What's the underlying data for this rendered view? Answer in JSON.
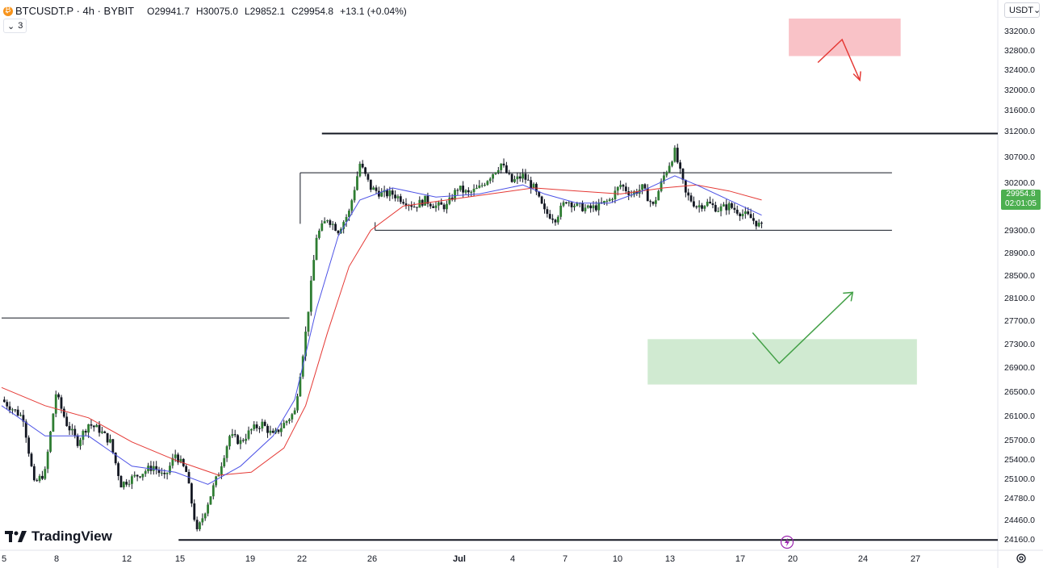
{
  "legend": {
    "symbol": "BTCUSDT.P · 4h · BYBIT",
    "open_label": "O",
    "open": "29941.7",
    "high_label": "H",
    "high": "30075.0",
    "low_label": "L",
    "low": "29852.1",
    "close_label": "C",
    "close": "29954.8",
    "change": "+13.1 (+0.04%)",
    "indicator_count": "3",
    "coin_icon": "bitcoin-icon"
  },
  "currency_select": {
    "value": "USDT",
    "icon": "chevron-down-icon"
  },
  "price_tag": {
    "price": "29954.8",
    "countdown": "02:01:05",
    "color": "#4caf50"
  },
  "branding": {
    "logo_text": "TradingView"
  },
  "colors": {
    "up": "#26a69a",
    "candle_body": "#2e7d32",
    "ema_fast": "#4c52e6",
    "ema_slow": "#e53935",
    "sell_zone": "#f8b7bd",
    "buy_zone": "#c8e6c9",
    "sell_arrow": "#e53935",
    "buy_arrow": "#43a047"
  },
  "chart_data": {
    "type": "candlestick",
    "y_ticks": [
      "33200.0",
      "32800.0",
      "32400.0",
      "32000.0",
      "31600.0",
      "31200.0",
      "30700.0",
      "30200.0",
      "29700.0",
      "29300.0",
      "28900.0",
      "28500.0",
      "28100.0",
      "27700.0",
      "27300.0",
      "26900.0",
      "26500.0",
      "26100.0",
      "25700.0",
      "25400.0",
      "25100.0",
      "24780.0",
      "24460.0",
      "24160.0"
    ],
    "x_ticks": [
      "5",
      "8",
      "12",
      "15",
      "19",
      "22",
      "26",
      "Jul",
      "4",
      "7",
      "10",
      "13",
      "17",
      "20",
      "24",
      "27"
    ],
    "x_tick_bold": "Jul",
    "ylim": [
      24000,
      33500
    ],
    "price_path": [
      [
        0,
        27100
      ],
      [
        2,
        26800
      ],
      [
        3,
        25700
      ],
      [
        4,
        25900
      ],
      [
        5,
        27200
      ],
      [
        6,
        26700
      ],
      [
        7,
        26400
      ],
      [
        8,
        26700
      ],
      [
        9,
        26600
      ],
      [
        10,
        26400
      ],
      [
        11,
        25700
      ],
      [
        12,
        25800
      ],
      [
        13,
        25900
      ],
      [
        14,
        26000
      ],
      [
        15,
        25800
      ],
      [
        16,
        26200
      ],
      [
        17,
        25900
      ],
      [
        18,
        24900
      ],
      [
        19,
        25400
      ],
      [
        20,
        25900
      ],
      [
        21,
        26500
      ],
      [
        22,
        26400
      ],
      [
        23,
        26600
      ],
      [
        24,
        26700
      ],
      [
        25,
        26500
      ],
      [
        26,
        26700
      ],
      [
        27,
        26900
      ],
      [
        28,
        28200
      ],
      [
        29,
        29800
      ],
      [
        30,
        30100
      ],
      [
        31,
        29900
      ],
      [
        32,
        30200
      ],
      [
        33,
        31000
      ],
      [
        34,
        30600
      ],
      [
        35,
        30500
      ],
      [
        36,
        30500
      ],
      [
        37,
        30400
      ],
      [
        38,
        30300
      ],
      [
        39,
        30400
      ],
      [
        40,
        30300
      ],
      [
        41,
        30300
      ],
      [
        42,
        30600
      ],
      [
        43,
        30500
      ],
      [
        44,
        30600
      ],
      [
        45,
        30800
      ],
      [
        46,
        31000
      ],
      [
        47,
        30700
      ],
      [
        48,
        30800
      ],
      [
        49,
        30600
      ],
      [
        50,
        30200
      ],
      [
        51,
        30100
      ],
      [
        52,
        30400
      ],
      [
        53,
        30300
      ],
      [
        54,
        30250
      ],
      [
        55,
        30300
      ],
      [
        56,
        30400
      ],
      [
        57,
        30650
      ],
      [
        58,
        30500
      ],
      [
        59,
        30600
      ],
      [
        60,
        30300
      ],
      [
        61,
        30800
      ],
      [
        62,
        31200
      ],
      [
        63,
        30500
      ],
      [
        64,
        30300
      ],
      [
        65,
        30350
      ],
      [
        66,
        30250
      ],
      [
        67,
        30300
      ],
      [
        68,
        30200
      ],
      [
        69,
        30100
      ],
      [
        70,
        29950
      ]
    ],
    "ema_fast": [
      [
        0,
        27000
      ],
      [
        4,
        26500
      ],
      [
        8,
        26500
      ],
      [
        12,
        26000
      ],
      [
        16,
        25900
      ],
      [
        19,
        25700
      ],
      [
        22,
        26000
      ],
      [
        25,
        26500
      ],
      [
        27,
        27100
      ],
      [
        29,
        28600
      ],
      [
        31,
        29800
      ],
      [
        33,
        30400
      ],
      [
        36,
        30600
      ],
      [
        40,
        30450
      ],
      [
        44,
        30500
      ],
      [
        48,
        30650
      ],
      [
        50,
        30500
      ],
      [
        53,
        30350
      ],
      [
        56,
        30350
      ],
      [
        59,
        30550
      ],
      [
        62,
        30800
      ],
      [
        64,
        30650
      ],
      [
        67,
        30400
      ],
      [
        70,
        30150
      ]
    ],
    "ema_slow": [
      [
        0,
        27300
      ],
      [
        4,
        27000
      ],
      [
        8,
        26800
      ],
      [
        12,
        26400
      ],
      [
        16,
        26100
      ],
      [
        20,
        25850
      ],
      [
        23,
        25900
      ],
      [
        26,
        26300
      ],
      [
        28,
        27000
      ],
      [
        30,
        28200
      ],
      [
        32,
        29300
      ],
      [
        34,
        29900
      ],
      [
        37,
        30300
      ],
      [
        41,
        30400
      ],
      [
        45,
        30500
      ],
      [
        49,
        30600
      ],
      [
        53,
        30550
      ],
      [
        57,
        30500
      ],
      [
        61,
        30600
      ],
      [
        64,
        30650
      ],
      [
        67,
        30550
      ],
      [
        70,
        30400
      ]
    ],
    "levels": [
      {
        "name": "range-top",
        "price": 31500,
        "from": 29.5,
        "to": 100
      },
      {
        "name": "inner-box-top",
        "price": 30850,
        "from": 27.5,
        "to": 82
      },
      {
        "name": "range-bottom",
        "price": 29900,
        "from": 34.4,
        "to": 82
      },
      {
        "name": "prior-support",
        "price": 28450,
        "from": 0,
        "to": 26.5
      },
      {
        "name": "major-support",
        "price": 24780,
        "from": 16.3,
        "to": 100
      }
    ],
    "zones": [
      {
        "name": "sell-zone",
        "price_top": 33400,
        "price_bottom": 32780,
        "from": 72.5,
        "to": 82.8
      },
      {
        "name": "buy-zone",
        "price_top": 28100,
        "price_bottom": 27350,
        "from": 59.5,
        "to": 84.3
      }
    ],
    "x_index_range": [
      0,
      100
    ],
    "current_price": 29954.8
  }
}
